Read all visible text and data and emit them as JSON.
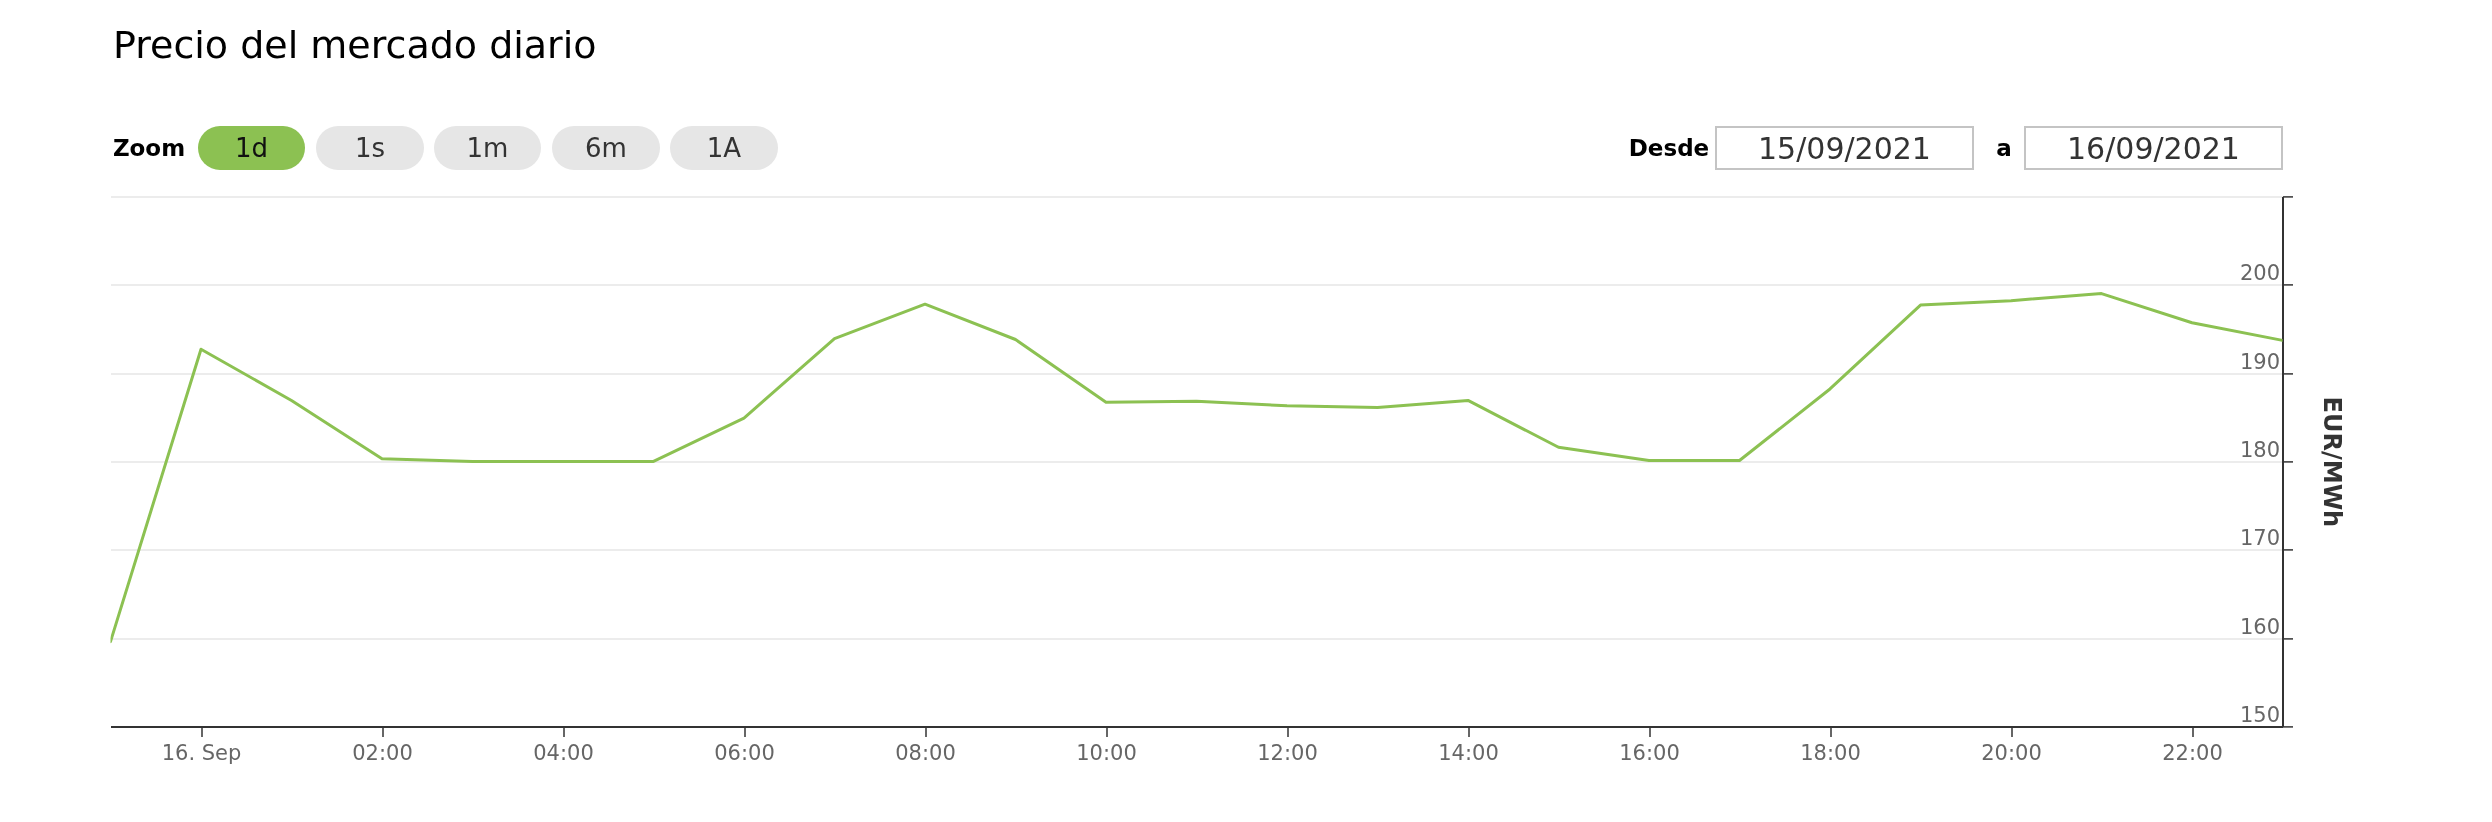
{
  "chart_data": {
    "type": "line",
    "title": "Precio del mercado diario",
    "ylabel": "EUR/MWh",
    "annotations": [
      "Zoom",
      "1d",
      "1s",
      "1m",
      "6m",
      "1A",
      "Desde",
      "15/09/2021",
      "a",
      "16/09/2021"
    ],
    "x": [
      "2021-09-15T23:00",
      "2021-09-16T00:00",
      "2021-09-16T01:00",
      "2021-09-16T02:00",
      "2021-09-16T03:00",
      "2021-09-16T04:00",
      "2021-09-16T05:00",
      "2021-09-16T06:00",
      "2021-09-16T07:00",
      "2021-09-16T08:00",
      "2021-09-16T09:00",
      "2021-09-16T10:00",
      "2021-09-16T11:00",
      "2021-09-16T12:00",
      "2021-09-16T13:00",
      "2021-09-16T14:00",
      "2021-09-16T15:00",
      "2021-09-16T16:00",
      "2021-09-16T17:00",
      "2021-09-16T18:00",
      "2021-09-16T19:00",
      "2021-09-16T20:00",
      "2021-09-16T21:00",
      "2021-09-16T22:00",
      "2021-09-16T23:00"
    ],
    "series": [
      {
        "color": "#8cc152",
        "values": [
          159.6,
          192.7,
          186.9,
          180.3,
          180.0,
          180.0,
          180.0,
          184.9,
          193.9,
          197.8,
          193.8,
          186.7,
          186.8,
          186.3,
          186.1,
          186.9,
          181.6,
          180.1,
          180.1,
          188.2,
          197.7,
          198.2,
          199.0,
          195.7,
          193.7
        ]
      }
    ],
    "xlim": [
      "2021-09-15T23:00",
      "2021-09-16T23:00"
    ],
    "xticks": [
      {
        "value": "2021-09-16T00:00",
        "label": "16. Sep"
      },
      {
        "value": "2021-09-16T02:00",
        "label": "02:00"
      },
      {
        "value": "2021-09-16T04:00",
        "label": "04:00"
      },
      {
        "value": "2021-09-16T06:00",
        "label": "06:00"
      },
      {
        "value": "2021-09-16T08:00",
        "label": "08:00"
      },
      {
        "value": "2021-09-16T10:00",
        "label": "10:00"
      },
      {
        "value": "2021-09-16T12:00",
        "label": "12:00"
      },
      {
        "value": "2021-09-16T14:00",
        "label": "14:00"
      },
      {
        "value": "2021-09-16T16:00",
        "label": "16:00"
      },
      {
        "value": "2021-09-16T18:00",
        "label": "18:00"
      },
      {
        "value": "2021-09-16T20:00",
        "label": "20:00"
      },
      {
        "value": "2021-09-16T22:00",
        "label": "22:00"
      }
    ],
    "ylim": [
      150,
      210
    ],
    "yticks": [
      150,
      160,
      170,
      180,
      190,
      200,
      {
        "value": 210,
        "label": null
      }
    ],
    "grid": "y",
    "marker": "none",
    "line_style": "solid"
  }
}
